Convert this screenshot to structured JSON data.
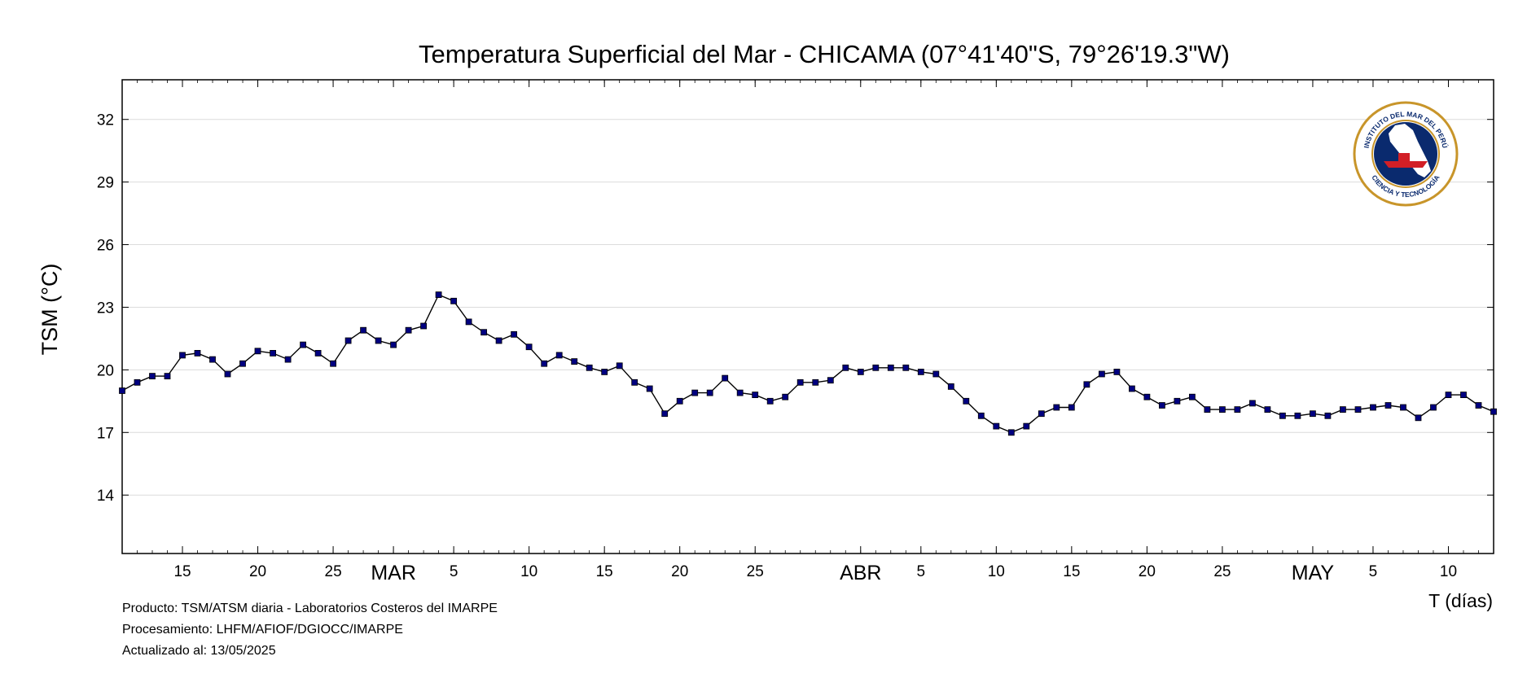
{
  "chart_data": {
    "type": "line",
    "title": "Temperatura Superficial del Mar - CHICAMA (07°41'40\"S, 79°26'19.3\"W)",
    "ylabel": "TSM (°C)",
    "xlabel": "T (días)",
    "ylim": [
      11.2,
      33.9
    ],
    "y_ticks": [
      14,
      17,
      20,
      23,
      26,
      29,
      32
    ],
    "grid": true,
    "x_start": "2025-02-11",
    "x_end": "2025-05-13",
    "x_day_ticks": [
      {
        "date": "2025-02-15",
        "label": "15"
      },
      {
        "date": "2025-02-20",
        "label": "20"
      },
      {
        "date": "2025-02-25",
        "label": "25"
      },
      {
        "date": "2025-03-05",
        "label": "5"
      },
      {
        "date": "2025-03-10",
        "label": "10"
      },
      {
        "date": "2025-03-15",
        "label": "15"
      },
      {
        "date": "2025-03-20",
        "label": "20"
      },
      {
        "date": "2025-03-25",
        "label": "25"
      },
      {
        "date": "2025-04-05",
        "label": "5"
      },
      {
        "date": "2025-04-10",
        "label": "10"
      },
      {
        "date": "2025-04-15",
        "label": "15"
      },
      {
        "date": "2025-04-20",
        "label": "20"
      },
      {
        "date": "2025-04-25",
        "label": "25"
      },
      {
        "date": "2025-05-05",
        "label": "5"
      },
      {
        "date": "2025-05-10",
        "label": "10"
      }
    ],
    "x_month_labels": [
      {
        "date": "2025-03-01",
        "label": "MAR"
      },
      {
        "date": "2025-04-01",
        "label": "ABR"
      },
      {
        "date": "2025-05-01",
        "label": "MAY"
      }
    ],
    "series": [
      {
        "values": [
          19.0,
          19.4,
          19.7,
          19.7,
          20.7,
          20.8,
          20.5,
          19.8,
          20.3,
          20.9,
          20.8,
          20.5,
          21.2,
          20.8,
          20.3,
          21.4,
          21.9,
          21.4,
          21.2,
          21.9,
          22.1,
          23.6,
          23.3,
          22.3,
          21.8,
          21.4,
          21.7,
          21.1,
          20.3,
          20.7,
          20.4,
          20.1,
          19.9,
          20.2,
          19.4,
          19.1,
          17.9,
          18.5,
          18.9,
          18.9,
          19.6,
          18.9,
          18.8,
          18.5,
          18.7,
          19.4,
          19.4,
          19.5,
          20.1,
          19.9,
          20.1,
          20.1,
          20.1,
          19.9,
          19.8,
          19.2,
          18.5,
          17.8,
          17.3,
          17.0,
          17.3,
          17.9,
          18.2,
          18.2,
          19.3,
          19.8,
          19.9,
          19.1,
          18.7,
          18.3,
          18.5,
          18.7,
          18.1,
          18.1,
          18.1,
          18.4,
          18.1,
          17.8,
          17.8,
          17.9,
          17.8,
          18.1,
          18.1,
          18.2,
          18.3,
          18.2,
          17.7,
          18.2,
          18.8,
          18.8,
          18.3,
          18.0
        ],
        "color": "#000080",
        "line_color": "#000000"
      }
    ]
  },
  "footer": {
    "producto": "Producto: TSM/ATSM diaria - Laboratorios Costeros del IMARPE",
    "procesamiento": "Procesamiento: LHFM/AFIOF/DGIOCC/IMARPE",
    "actualizado": "Actualizado al: 13/05/2025"
  },
  "logo": {
    "top_text": "INSTITUTO DEL MAR DEL PERÚ",
    "bottom_text": "CIENCIA Y TECNOLOGÍA",
    "ring_color": "#c8952a",
    "inner_color": "#0a2a6e",
    "map_color": "#ffffff",
    "boat_color": "#d21f26"
  }
}
